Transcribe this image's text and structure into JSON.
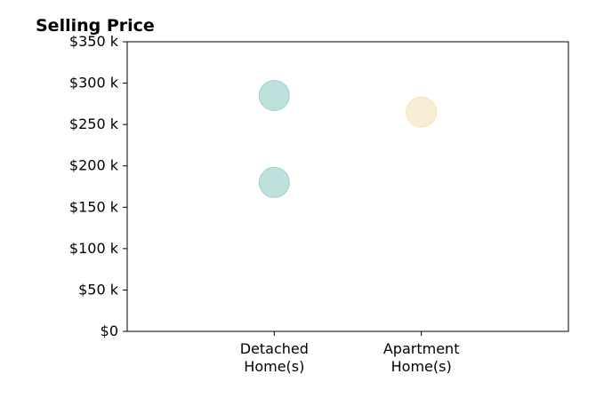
{
  "chart_data": {
    "type": "scatter",
    "title": "Selling Price",
    "xlabel": "",
    "ylabel": "",
    "categories": [
      "Detached\nHome(s)",
      "Apartment\nHome(s)"
    ],
    "x_positions": [
      1,
      2
    ],
    "xlim": [
      0,
      3
    ],
    "ylim": [
      0,
      350000
    ],
    "y_ticks": [
      0,
      50000,
      100000,
      150000,
      200000,
      250000,
      300000,
      350000
    ],
    "y_tick_labels": [
      "$0",
      "$50 k",
      "$100 k",
      "$150 k",
      "$200 k",
      "$250 k",
      "$300 k",
      "$350 k"
    ],
    "grid": false,
    "legend": "none",
    "points": [
      {
        "category": "Detached\nHome(s)",
        "x": 1,
        "y": 285000,
        "color": "#7fc4bc"
      },
      {
        "category": "Detached\nHome(s)",
        "x": 1,
        "y": 180000,
        "color": "#7fc4bc"
      },
      {
        "category": "Apartment\nHome(s)",
        "x": 2,
        "y": 265000,
        "color": "#f3dba7"
      }
    ]
  }
}
